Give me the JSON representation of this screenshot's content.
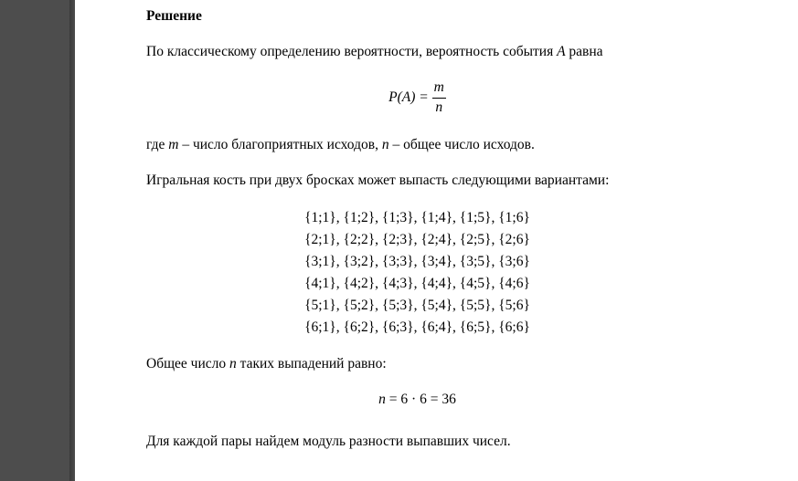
{
  "heading": "Решение",
  "intro_prefix": "По классическому определению вероятности, вероятность события ",
  "intro_var": "A",
  "intro_suffix": " равна",
  "formula": {
    "lhs_P": "P",
    "lhs_arg": "A",
    "eq": " = ",
    "num": "m",
    "den": "n"
  },
  "where_prefix": "где ",
  "where_m": "m",
  "where_mid1": " – число благоприятных исходов, ",
  "where_n": "n",
  "where_mid2": " – общее число исходов.",
  "dice_text": "Игральная кость при двух бросках может выпасть следующими вариантами:",
  "outcomes": [
    "{1;1}, {1;2}, {1;3}, {1;4}, {1;5}, {1;6}",
    "{2;1}, {2;2}, {2;3}, {2;4}, {2;5}, {2;6}",
    "{3;1}, {3;2}, {3;3}, {3;4}, {3;5}, {3;6}",
    "{4;1}, {4;2}, {4;3}, {4;4}, {4;5}, {4;6}",
    "{5;1}, {5;2}, {5;3}, {5;4}, {5;5}, {5;6}",
    "{6;1}, {6;2}, {6;3}, {6;4}, {6;5}, {6;6}"
  ],
  "total_prefix": "Общее число ",
  "total_var": "n",
  "total_suffix": " таких выпадений равно:",
  "n_eq_lhs": "n",
  "n_eq_rhs": " = 6 · 6 = 36",
  "final": "Для каждой пары найдем модуль разности выпавших чисел.",
  "colors": {
    "page_bg": "#ffffff",
    "outer_bg": "#4d4d4d",
    "text": "#000000"
  },
  "fonts": {
    "body_family": "Times New Roman",
    "body_size_pt": 12
  }
}
